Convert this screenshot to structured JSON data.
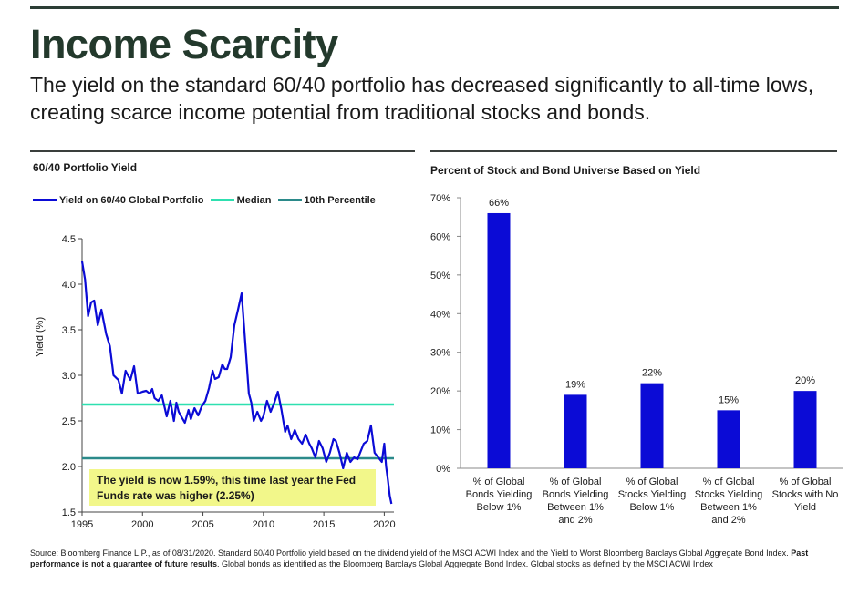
{
  "header": {
    "title": "Income Scarcity",
    "subtitle": "The yield on the standard 60/40 portfolio has decreased significantly to all-time lows, creating scarce income potential from traditional stocks and bonds."
  },
  "colors": {
    "line": "#0b0bd6",
    "median": "#2ee0b0",
    "p10": "#2b8a8a",
    "bar": "#0b0bd6",
    "callout": "#f2f78a",
    "title": "#23392c"
  },
  "left_panel": {
    "title": "60/40 Portfolio Yield",
    "legend": [
      "Yield on 60/40 Global Portfolio",
      "Median",
      "10th Percentile"
    ],
    "callout": "The yield is now 1.59%, this time last year the Fed Funds rate was higher (2.25%)"
  },
  "right_panel": {
    "title": "Percent of Stock and Bond Universe Based on Yield"
  },
  "footnote": {
    "part1": "Source: Bloomberg Finance L.P., as of 08/31/2020.  Standard 60/40 Portfolio yield based on the dividend yield of the MSCI ACWI Index and the Yield to Worst Bloomberg Barclays Global Aggregate Bond Index.  ",
    "bold": "Past performance is not a guarantee of future results",
    "part2": ". Global bonds as identified as the Bloomberg Barclays Global Aggregate Bond Index.  Global stocks as defined by the MSCI ACWI Index"
  },
  "chart_data": [
    {
      "type": "line",
      "title": "60/40 Portfolio Yield",
      "xlabel": "",
      "ylabel": "Yield (%)",
      "xlim": [
        1995,
        2020.8
      ],
      "ylim": [
        1.5,
        4.5
      ],
      "xticks": [
        1995,
        2000,
        2005,
        2010,
        2015,
        2020
      ],
      "yticks": [
        "1.5",
        "2.0",
        "2.5",
        "3.0",
        "3.5",
        "4.0",
        "4.5"
      ],
      "series": [
        {
          "name": "Yield on 60/40 Global Portfolio",
          "x": [
            1995.0,
            1995.25,
            1995.5,
            1995.75,
            1996.0,
            1996.3,
            1996.6,
            1997.0,
            1997.3,
            1997.6,
            1998.0,
            1998.3,
            1998.6,
            1999.0,
            1999.3,
            1999.6,
            2000.0,
            2000.3,
            2000.6,
            2000.8,
            2001.0,
            2001.3,
            2001.6,
            2002.0,
            2002.3,
            2002.6,
            2002.8,
            2003.0,
            2003.2,
            2003.5,
            2003.8,
            2004.0,
            2004.3,
            2004.6,
            2004.9,
            2005.2,
            2005.5,
            2005.8,
            2006.0,
            2006.3,
            2006.6,
            2006.8,
            2007.0,
            2007.3,
            2007.6,
            2007.9,
            2008.2,
            2008.5,
            2008.8,
            2009.0,
            2009.2,
            2009.5,
            2009.8,
            2010.0,
            2010.3,
            2010.6,
            2010.9,
            2011.2,
            2011.5,
            2011.8,
            2012.0,
            2012.3,
            2012.6,
            2012.9,
            2013.2,
            2013.5,
            2013.8,
            2014.0,
            2014.3,
            2014.6,
            2014.9,
            2015.2,
            2015.5,
            2015.8,
            2016.0,
            2016.3,
            2016.6,
            2016.9,
            2017.2,
            2017.5,
            2017.8,
            2018.0,
            2018.3,
            2018.6,
            2018.9,
            2019.2,
            2019.5,
            2019.8,
            2020.0,
            2020.15,
            2020.3,
            2020.45,
            2020.6
          ],
          "values": [
            4.25,
            4.05,
            3.65,
            3.8,
            3.82,
            3.55,
            3.72,
            3.45,
            3.32,
            3.0,
            2.95,
            2.8,
            3.05,
            2.95,
            3.1,
            2.8,
            2.82,
            2.83,
            2.8,
            2.85,
            2.75,
            2.72,
            2.78,
            2.55,
            2.72,
            2.5,
            2.7,
            2.6,
            2.55,
            2.48,
            2.62,
            2.52,
            2.64,
            2.56,
            2.66,
            2.72,
            2.86,
            3.05,
            2.96,
            2.98,
            3.12,
            3.07,
            3.07,
            3.2,
            3.55,
            3.72,
            3.9,
            3.35,
            2.8,
            2.7,
            2.5,
            2.6,
            2.5,
            2.55,
            2.72,
            2.6,
            2.7,
            2.82,
            2.62,
            2.38,
            2.45,
            2.3,
            2.4,
            2.3,
            2.25,
            2.35,
            2.25,
            2.2,
            2.1,
            2.28,
            2.2,
            2.05,
            2.15,
            2.3,
            2.28,
            2.15,
            1.98,
            2.15,
            2.05,
            2.1,
            2.08,
            2.15,
            2.25,
            2.28,
            2.45,
            2.15,
            2.1,
            2.05,
            2.25,
            2.0,
            1.85,
            1.68,
            1.59
          ]
        },
        {
          "name": "Median",
          "value": 2.68
        },
        {
          "name": "10th Percentile",
          "value": 2.09
        }
      ]
    },
    {
      "type": "bar",
      "title": "Percent of Stock and Bond Universe Based on Yield",
      "categories": [
        [
          "% of Global",
          "Bonds Yielding",
          "Below 1%"
        ],
        [
          "% of Global",
          "Bonds Yielding",
          "Between 1%",
          "and 2%"
        ],
        [
          "% of Global",
          "Stocks Yielding",
          "Below 1%"
        ],
        [
          "% of Global",
          "Stocks Yielding",
          "Between 1%",
          "and 2%"
        ],
        [
          "% of Global",
          "Stocks with No",
          "Yield"
        ]
      ],
      "values": [
        66,
        19,
        22,
        15,
        20
      ],
      "labels": [
        "66%",
        "19%",
        "22%",
        "15%",
        "20%"
      ],
      "ylim": [
        0,
        70
      ],
      "yticks": [
        "0%",
        "10%",
        "20%",
        "30%",
        "40%",
        "50%",
        "60%",
        "70%"
      ]
    }
  ]
}
